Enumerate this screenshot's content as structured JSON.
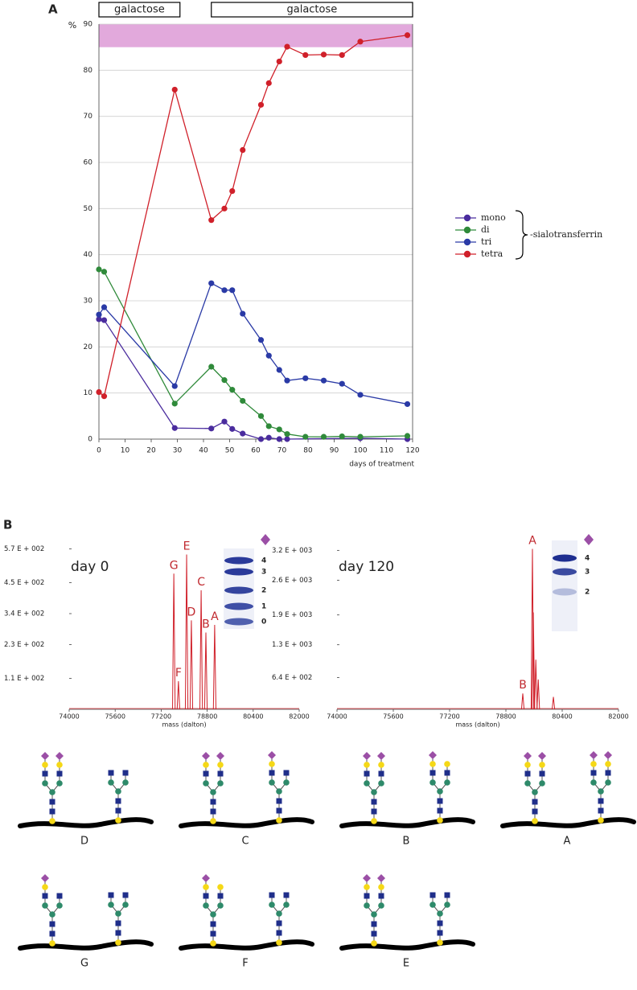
{
  "figure": {
    "panel_labels": [
      "A",
      "B"
    ],
    "glycan_labels": [
      "D",
      "C",
      "B",
      "A",
      "G",
      "F",
      "E"
    ]
  },
  "chart_data": [
    {
      "type": "line",
      "ylabel": "%",
      "xlabel": "days of treatment",
      "xlim": [
        0,
        120
      ],
      "ylim": [
        0,
        90
      ],
      "xticks": [
        0,
        10,
        20,
        30,
        40,
        50,
        60,
        70,
        80,
        90,
        100,
        110,
        120
      ],
      "yticks": [
        0,
        10,
        20,
        30,
        40,
        50,
        60,
        70,
        80,
        90
      ],
      "grid": true,
      "band": {
        "range": [
          85,
          90
        ],
        "color": "#e2a9dc"
      },
      "periods": [
        {
          "label": "galactose",
          "start": 0,
          "end": 31
        },
        {
          "label": "galactose",
          "start": 43,
          "end": 120
        }
      ],
      "legend": "right",
      "legend_suffix": "-sialotransferrin",
      "series": [
        {
          "name": "mono",
          "color": "#4a2c9e",
          "x": [
            0,
            2,
            29,
            43,
            48,
            51,
            55,
            62,
            65,
            69,
            72,
            100,
            118
          ],
          "values": [
            26,
            25.8,
            2.4,
            2.3,
            3.8,
            2.2,
            1.2,
            0,
            0.3,
            0,
            0,
            0.2,
            0
          ]
        },
        {
          "name": "di",
          "color": "#2f8a3a",
          "x": [
            0,
            2,
            29,
            43,
            48,
            51,
            55,
            62,
            65,
            69,
            72,
            79,
            86,
            93,
            100,
            118
          ],
          "values": [
            36.8,
            36.3,
            7.7,
            15.7,
            12.8,
            10.7,
            8.3,
            5,
            2.8,
            2.1,
            1.1,
            0.5,
            0.5,
            0.6,
            0.5,
            0.7
          ]
        },
        {
          "name": "tri",
          "color": "#2a3aa6",
          "x": [
            0,
            2,
            29,
            43,
            48,
            51,
            55,
            62,
            65,
            69,
            72,
            79,
            86,
            93,
            100,
            118
          ],
          "values": [
            27,
            28.6,
            11.5,
            33.8,
            32.3,
            32.3,
            27.2,
            21.5,
            18.1,
            15,
            12.7,
            13.2,
            12.7,
            12,
            9.6,
            7.6
          ]
        },
        {
          "name": "tetra",
          "color": "#d0202a",
          "x": [
            0,
            2,
            29,
            43,
            48,
            51,
            55,
            62,
            65,
            69,
            72,
            79,
            86,
            93,
            100,
            118
          ],
          "values": [
            10.2,
            9.3,
            75.8,
            47.5,
            50,
            53.8,
            62.7,
            72.5,
            77.2,
            81.9,
            85.1,
            83.3,
            83.4,
            83.3,
            86.2,
            87.6
          ]
        }
      ]
    },
    {
      "type": "spectrum",
      "annotation": "day 0",
      "xlabel": "mass (dalton)",
      "color": "#d0202a",
      "xlim": [
        74000,
        82000
      ],
      "ylim": [
        0,
        600
      ],
      "xticks": [
        74000,
        75600,
        77200,
        78800,
        80400,
        82000
      ],
      "yticks": [
        {
          "value": 110,
          "label": "1.1 E + 002"
        },
        {
          "value": 230,
          "label": "2.3 E + 002"
        },
        {
          "value": 340,
          "label": "3.4 E + 002"
        },
        {
          "value": 450,
          "label": "4.5 E + 002"
        },
        {
          "value": 570,
          "label": "5.7 E + 002"
        }
      ],
      "x": [
        77640,
        77800,
        78085,
        78250,
        78590,
        78755,
        79060
      ],
      "values": [
        482,
        100,
        550,
        316,
        423,
        273,
        300
      ],
      "peak_labels": [
        "G",
        "F",
        "E",
        "D",
        "C",
        "B",
        "A"
      ],
      "gel_labels": [
        "4",
        "3",
        "2",
        "1",
        "0"
      ]
    },
    {
      "type": "spectrum",
      "annotation": "day 120",
      "xlabel": "mass (dalton)",
      "color": "#d0202a",
      "xlim": [
        74000,
        82000
      ],
      "ylim": [
        0,
        3400
      ],
      "xticks": [
        74000,
        75600,
        77200,
        78800,
        80400,
        82000
      ],
      "yticks": [
        {
          "value": 640,
          "label": "6.4 E + 002"
        },
        {
          "value": 1300,
          "label": "1.3 E + 003"
        },
        {
          "value": 1900,
          "label": "1.9 E + 003"
        },
        {
          "value": 2600,
          "label": "2.6 E + 003"
        },
        {
          "value": 3200,
          "label": "3.2 E + 003"
        }
      ],
      "x": [
        79280,
        79554,
        79580,
        79650,
        79720,
        80150
      ],
      "values": [
        320,
        3230,
        1950,
        1000,
        600,
        250
      ],
      "peak_labels": [
        "B",
        "A",
        null,
        null,
        null,
        null
      ],
      "gel_labels": [
        "4",
        "3",
        "2"
      ]
    }
  ]
}
